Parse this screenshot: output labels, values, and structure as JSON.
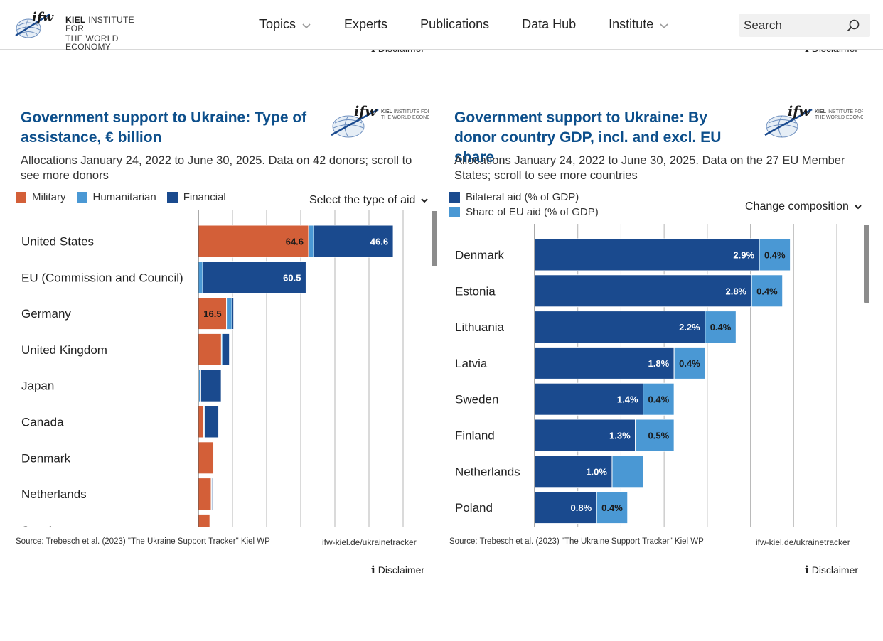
{
  "header": {
    "logo": {
      "mark": "ifw",
      "line1_bold": "KIEL",
      "line1": "INSTITUTE FOR",
      "line2": "THE WORLD ECONOMY"
    },
    "nav": [
      {
        "label": "Topics",
        "has_dropdown": true
      },
      {
        "label": "Experts",
        "has_dropdown": false
      },
      {
        "label": "Publications",
        "has_dropdown": false
      },
      {
        "label": "Data Hub",
        "has_dropdown": false
      },
      {
        "label": "Institute",
        "has_dropdown": true
      }
    ],
    "search_placeholder": "Search"
  },
  "ghost_disclaimer_label": "Disclaimer",
  "panels": [
    {
      "title": "Government support to Ukraine: Type of assistance, € billion",
      "subtitle": "Allocations January 24, 2022 to June 30, 2025. Data on 42 donors; scroll to see more donors",
      "legend": [
        "Military",
        "Humanitarian",
        "Financial"
      ],
      "dropdown_label": "Select the type of aid",
      "source": "Source: Trebesch et al. (2023) \"The Ukraine Support Tracker\" Kiel WP",
      "url": "ifw-kiel.de/ukrainetracker",
      "disclaimer": "Disclaimer"
    },
    {
      "title": "Government support to Ukraine: By donor country GDP, incl. and excl. EU share",
      "subtitle": "Allocations January 24, 2022 to June 30, 2025. Data on the 27 EU Member States; scroll to see more countries",
      "legend": [
        "Bilateral aid (% of GDP)",
        "Share of EU aid (% of GDP)"
      ],
      "dropdown_label": "Change composition",
      "source": "Source: Trebesch et al. (2023) \"The Ukraine Support Tracker\" Kiel WP",
      "url": "ifw-kiel.de/ukrainetracker",
      "disclaimer": "Disclaimer"
    }
  ],
  "chart_data": [
    {
      "type": "bar",
      "orientation": "horizontal",
      "stacked": true,
      "title": "Government support to Ukraine: Type of assistance, € billion",
      "categories": [
        "United States",
        "EU (Commission and Council)",
        "Germany",
        "United Kingdom",
        "Japan",
        "Canada",
        "Denmark",
        "Netherlands",
        "Sweden"
      ],
      "series": [
        {
          "name": "Military",
          "color": "#d35f38",
          "values": [
            64.6,
            0,
            16.5,
            13.5,
            0.2,
            3.2,
            9.0,
            7.5,
            6.8
          ],
          "labels": [
            "64.6",
            "",
            "16.5",
            "",
            "",
            "",
            "",
            "",
            ""
          ]
        },
        {
          "name": "Humanitarian",
          "color": "#4a98d4",
          "values": [
            3.0,
            2.6,
            3.2,
            0.8,
            1.2,
            0.5,
            0.4,
            0.5,
            0.4
          ],
          "labels": [
            "",
            "",
            "",
            "",
            "",
            "",
            "",
            "",
            ""
          ]
        },
        {
          "name": "Financial",
          "color": "#1a4a8e",
          "values": [
            46.6,
            60.5,
            1.0,
            3.9,
            12.0,
            8.2,
            0.6,
            0.8,
            0.2
          ],
          "labels": [
            "46.6",
            "60.5",
            "",
            "",
            "",
            "",
            "",
            "",
            ""
          ]
        }
      ],
      "xlim": [
        0,
        120
      ],
      "grid": true
    },
    {
      "type": "bar",
      "orientation": "horizontal",
      "stacked": true,
      "title": "Government support to Ukraine: By donor country GDP, incl. and excl. EU share",
      "categories": [
        "Denmark",
        "Estonia",
        "Lithuania",
        "Latvia",
        "Sweden",
        "Finland",
        "Netherlands",
        "Poland"
      ],
      "series": [
        {
          "name": "Bilateral aid (% of GDP)",
          "color": "#1a4a8e",
          "values": [
            2.9,
            2.8,
            2.2,
            1.8,
            1.4,
            1.3,
            1.0,
            0.8
          ],
          "labels": [
            "2.9%",
            "2.8%",
            "2.2%",
            "1.8%",
            "1.4%",
            "1.3%",
            "1.0%",
            "0.8%"
          ]
        },
        {
          "name": "Share of EU aid (% of GDP)",
          "color": "#4a98d4",
          "values": [
            0.4,
            0.4,
            0.4,
            0.4,
            0.4,
            0.5,
            0.4,
            0.4
          ],
          "labels": [
            "0.4%",
            "0.4%",
            "0.4%",
            "0.4%",
            "0.4%",
            "0.5%",
            "",
            "0.4%"
          ]
        }
      ],
      "xlim": [
        0,
        3.9
      ],
      "grid": true
    }
  ]
}
